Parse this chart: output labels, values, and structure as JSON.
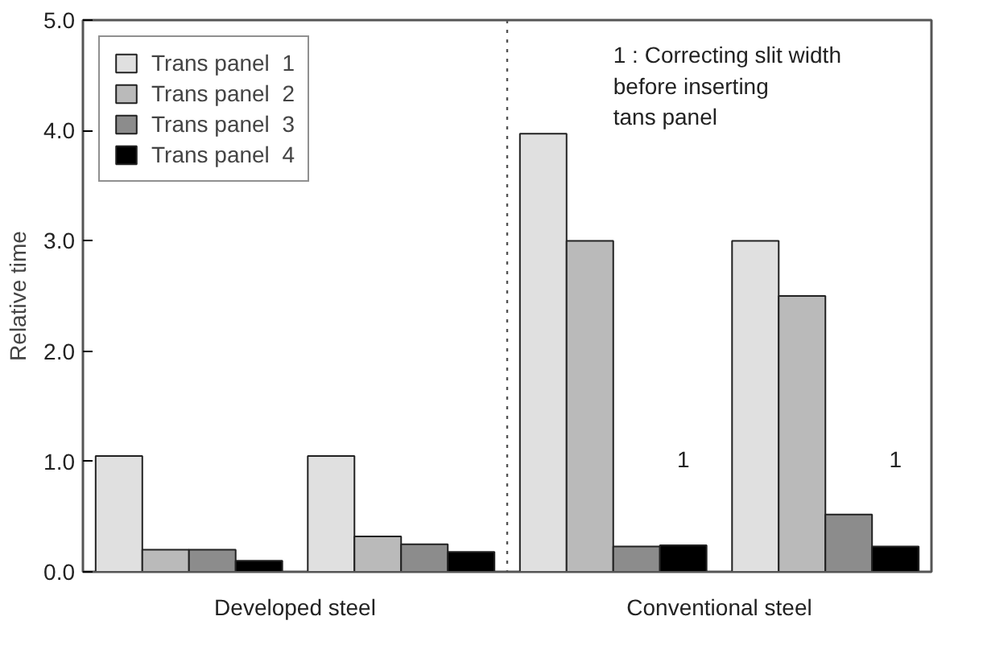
{
  "chart_data": {
    "type": "bar",
    "ylabel": "Relative time",
    "categories": [
      null,
      null,
      null,
      null
    ],
    "ylim": [
      0,
      5
    ],
    "yticks": [
      {
        "value": 0,
        "label": "0.0"
      },
      {
        "value": 1,
        "label": "1.0"
      },
      {
        "value": 2,
        "label": "2.0"
      },
      {
        "value": 3,
        "label": "3.0"
      },
      {
        "value": 4,
        "label": "4.0"
      },
      {
        "value": 5,
        "label": "5.0"
      }
    ],
    "series": [
      {
        "name": "Trans panel  1",
        "color": "#e0e0e0",
        "values": [
          1.05,
          1.05,
          3.97,
          3.0
        ]
      },
      {
        "name": "Trans panel  2",
        "color": "#bababa",
        "values": [
          0.2,
          0.32,
          3.0,
          2.5
        ]
      },
      {
        "name": "Trans panel  3",
        "color": "#8c8c8c",
        "values": [
          0.2,
          0.25,
          0.23,
          0.52
        ]
      },
      {
        "name": "Trans panel  4",
        "color": "#000000",
        "values": [
          0.1,
          0.18,
          0.24,
          0.23
        ]
      }
    ],
    "annotations": [
      "1 : Correcting slit width\n     before inserting\n     tans panel",
      "1",
      "1",
      "Developed steel",
      "Conventional steel"
    ],
    "legend": "top left",
    "grid": false
  }
}
